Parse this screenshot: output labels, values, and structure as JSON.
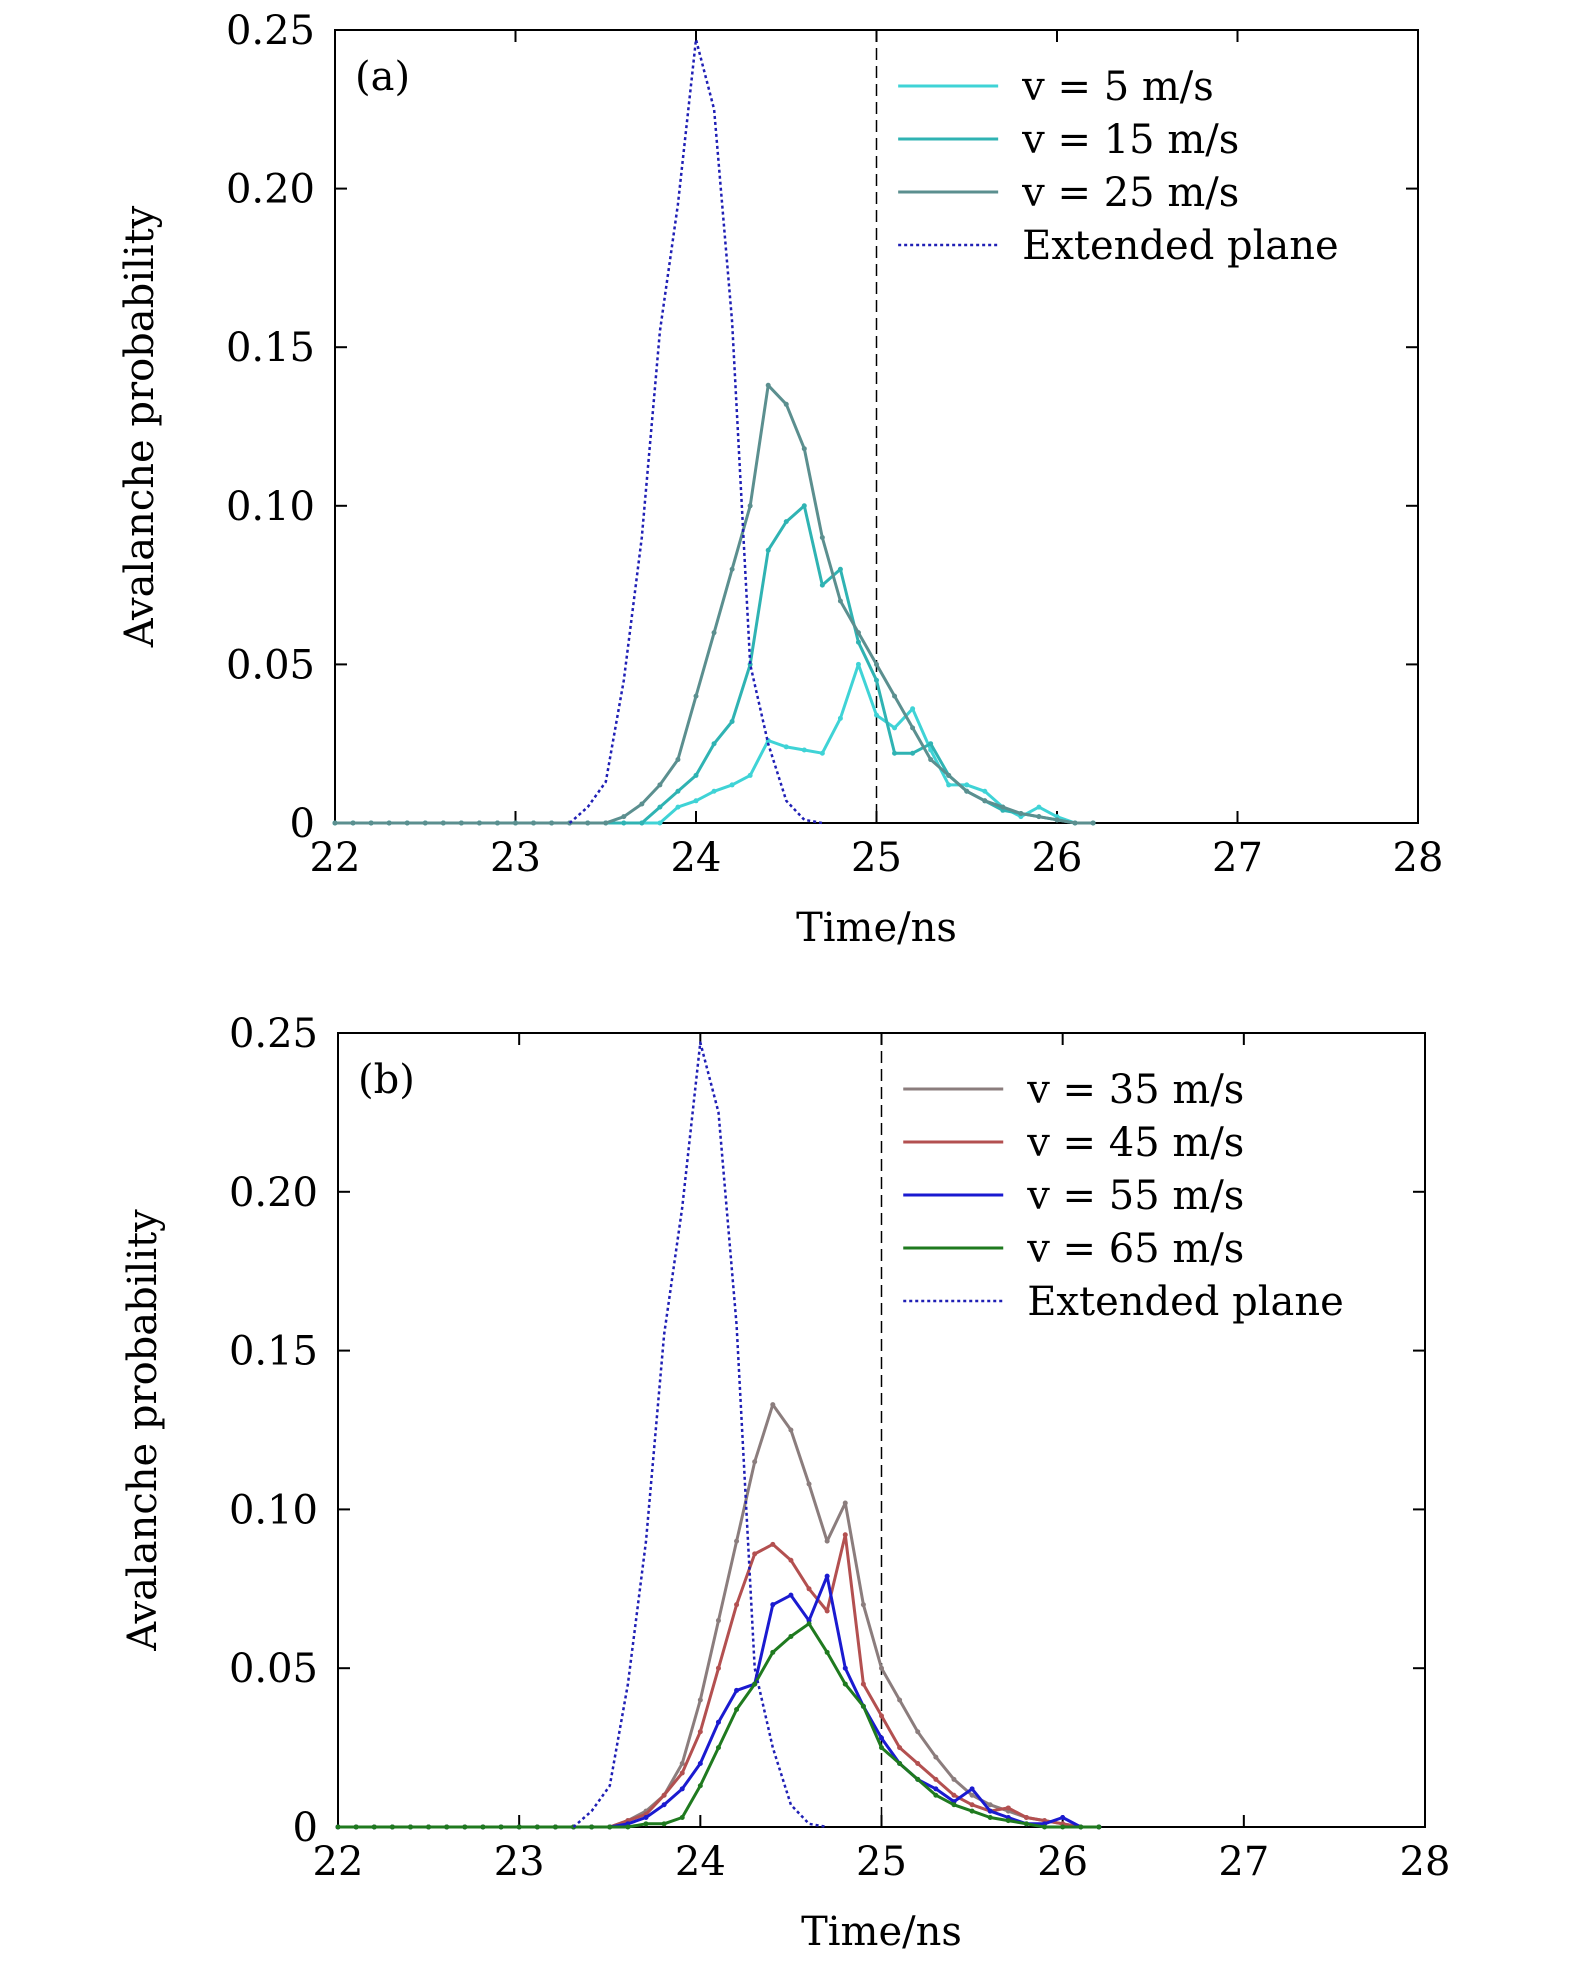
{
  "chart_data": [
    {
      "type": "line",
      "panel_label": "(a)",
      "xlabel": "Time/ns",
      "ylabel": "Avalanche probability",
      "xlim": [
        22,
        28
      ],
      "ylim": [
        0,
        0.25
      ],
      "xticks": [
        22,
        23,
        24,
        25,
        26,
        27,
        28
      ],
      "yticks": [
        0,
        0.05,
        0.1,
        0.15,
        0.2,
        0.25
      ],
      "xtick_labels": [
        "22",
        "23",
        "24",
        "25",
        "26",
        "27",
        "28"
      ],
      "ytick_labels": [
        "0",
        "0.05",
        "0.10",
        "0.15",
        "0.20",
        "0.25"
      ],
      "vline_x": 25,
      "legend_position": "top-right",
      "series": [
        {
          "name": "v = 5 m/s",
          "color": "#3fd3d6",
          "style": "solid",
          "x": [
            22,
            22.1,
            22.2,
            22.3,
            22.4,
            22.5,
            22.6,
            22.7,
            22.8,
            22.9,
            23,
            23.1,
            23.2,
            23.3,
            23.4,
            23.5,
            23.6,
            23.7,
            23.8,
            23.9,
            24,
            24.1,
            24.2,
            24.3,
            24.4,
            24.5,
            24.6,
            24.7,
            24.8,
            24.9,
            25,
            25.1,
            25.2,
            25.3,
            25.4,
            25.5,
            25.6,
            25.7,
            25.8,
            25.9,
            26,
            26.1,
            26.2
          ],
          "y": [
            0,
            0,
            0,
            0,
            0,
            0,
            0,
            0,
            0,
            0,
            0,
            0,
            0,
            0,
            0,
            0,
            0,
            0,
            0,
            0.005,
            0.007,
            0.01,
            0.012,
            0.015,
            0.026,
            0.024,
            0.023,
            0.022,
            0.033,
            0.05,
            0.034,
            0.03,
            0.036,
            0.023,
            0.012,
            0.012,
            0.01,
            0.005,
            0.002,
            0.005,
            0.002,
            0,
            0
          ]
        },
        {
          "name": "v = 15 m/s",
          "color": "#2fb3b3",
          "style": "solid",
          "x": [
            22,
            22.1,
            22.2,
            22.3,
            22.4,
            22.5,
            22.6,
            22.7,
            22.8,
            22.9,
            23,
            23.1,
            23.2,
            23.3,
            23.4,
            23.5,
            23.6,
            23.7,
            23.8,
            23.9,
            24,
            24.1,
            24.2,
            24.3,
            24.4,
            24.5,
            24.6,
            24.7,
            24.8,
            24.9,
            25,
            25.1,
            25.2,
            25.3,
            25.4,
            25.5,
            25.6,
            25.7,
            25.8,
            25.9,
            26,
            26.1,
            26.2
          ],
          "y": [
            0,
            0,
            0,
            0,
            0,
            0,
            0,
            0,
            0,
            0,
            0,
            0,
            0,
            0,
            0,
            0,
            0,
            0,
            0.005,
            0.01,
            0.015,
            0.025,
            0.032,
            0.05,
            0.086,
            0.095,
            0.1,
            0.075,
            0.08,
            0.057,
            0.045,
            0.022,
            0.022,
            0.025,
            0.015,
            0.01,
            0.007,
            0.004,
            0.003,
            0.002,
            0.001,
            0,
            0
          ]
        },
        {
          "name": "v = 25 m/s",
          "color": "#5b8f8f",
          "style": "solid",
          "x": [
            22,
            22.1,
            22.2,
            22.3,
            22.4,
            22.5,
            22.6,
            22.7,
            22.8,
            22.9,
            23,
            23.1,
            23.2,
            23.3,
            23.4,
            23.5,
            23.6,
            23.7,
            23.8,
            23.9,
            24,
            24.1,
            24.2,
            24.3,
            24.4,
            24.5,
            24.6,
            24.7,
            24.8,
            24.9,
            25,
            25.1,
            25.2,
            25.3,
            25.4,
            25.5,
            25.6,
            25.7,
            25.8,
            25.9,
            26,
            26.1,
            26.2
          ],
          "y": [
            0,
            0,
            0,
            0,
            0,
            0,
            0,
            0,
            0,
            0,
            0,
            0,
            0,
            0,
            0,
            0,
            0.002,
            0.006,
            0.012,
            0.02,
            0.04,
            0.06,
            0.08,
            0.1,
            0.138,
            0.132,
            0.118,
            0.09,
            0.07,
            0.06,
            0.05,
            0.04,
            0.03,
            0.02,
            0.015,
            0.01,
            0.007,
            0.005,
            0.003,
            0.002,
            0.001,
            0,
            0
          ]
        },
        {
          "name": "Extended plane",
          "color": "#1f1fb5",
          "style": "dotted",
          "x": [
            23.3,
            23.4,
            23.5,
            23.6,
            23.7,
            23.8,
            23.9,
            24,
            24.1,
            24.2,
            24.3,
            24.4,
            24.5,
            24.6,
            24.7
          ],
          "y": [
            0,
            0.005,
            0.013,
            0.045,
            0.09,
            0.155,
            0.195,
            0.247,
            0.225,
            0.158,
            0.05,
            0.025,
            0.007,
            0.001,
            0
          ]
        }
      ]
    },
    {
      "type": "line",
      "panel_label": "(b)",
      "xlabel": "Time/ns",
      "ylabel": "Avalanche probability",
      "xlim": [
        22,
        28
      ],
      "ylim": [
        0,
        0.25
      ],
      "xticks": [
        22,
        23,
        24,
        25,
        26,
        27,
        28
      ],
      "yticks": [
        0,
        0.05,
        0.1,
        0.15,
        0.2,
        0.25
      ],
      "xtick_labels": [
        "22",
        "23",
        "24",
        "25",
        "26",
        "27",
        "28"
      ],
      "ytick_labels": [
        "0",
        "0.05",
        "0.10",
        "0.15",
        "0.20",
        "0.25"
      ],
      "vline_x": 25,
      "legend_position": "top-right",
      "series": [
        {
          "name": "v = 35 m/s",
          "color": "#8b7d7d",
          "style": "solid",
          "x": [
            22,
            22.1,
            22.2,
            22.3,
            22.4,
            22.5,
            22.6,
            22.7,
            22.8,
            22.9,
            23,
            23.1,
            23.2,
            23.3,
            23.4,
            23.5,
            23.6,
            23.7,
            23.8,
            23.9,
            24,
            24.1,
            24.2,
            24.3,
            24.4,
            24.5,
            24.6,
            24.7,
            24.8,
            24.9,
            25,
            25.1,
            25.2,
            25.3,
            25.4,
            25.5,
            25.6,
            25.7,
            25.8,
            25.9,
            26,
            26.1,
            26.2
          ],
          "y": [
            0,
            0,
            0,
            0,
            0,
            0,
            0,
            0,
            0,
            0,
            0,
            0,
            0,
            0,
            0,
            0,
            0.002,
            0.005,
            0.01,
            0.02,
            0.04,
            0.065,
            0.09,
            0.115,
            0.133,
            0.125,
            0.108,
            0.09,
            0.102,
            0.07,
            0.05,
            0.04,
            0.03,
            0.022,
            0.015,
            0.01,
            0.007,
            0.005,
            0.003,
            0.002,
            0.001,
            0,
            0
          ]
        },
        {
          "name": "v = 45 m/s",
          "color": "#b35050",
          "style": "solid",
          "x": [
            22,
            22.1,
            22.2,
            22.3,
            22.4,
            22.5,
            22.6,
            22.7,
            22.8,
            22.9,
            23,
            23.1,
            23.2,
            23.3,
            23.4,
            23.5,
            23.6,
            23.7,
            23.8,
            23.9,
            24,
            24.1,
            24.2,
            24.3,
            24.4,
            24.5,
            24.6,
            24.7,
            24.8,
            24.9,
            25,
            25.1,
            25.2,
            25.3,
            25.4,
            25.5,
            25.6,
            25.7,
            25.8,
            25.9,
            26,
            26.1,
            26.2
          ],
          "y": [
            0,
            0,
            0,
            0,
            0,
            0,
            0,
            0,
            0,
            0,
            0,
            0,
            0,
            0,
            0,
            0,
            0.002,
            0.004,
            0.01,
            0.017,
            0.03,
            0.05,
            0.07,
            0.086,
            0.089,
            0.084,
            0.075,
            0.068,
            0.092,
            0.045,
            0.035,
            0.025,
            0.02,
            0.015,
            0.01,
            0.007,
            0.005,
            0.006,
            0.003,
            0.002,
            0.001,
            0,
            0
          ]
        },
        {
          "name": "v = 55 m/s",
          "color": "#1a1ad0",
          "style": "solid",
          "x": [
            22,
            22.1,
            22.2,
            22.3,
            22.4,
            22.5,
            22.6,
            22.7,
            22.8,
            22.9,
            23,
            23.1,
            23.2,
            23.3,
            23.4,
            23.5,
            23.6,
            23.7,
            23.8,
            23.9,
            24,
            24.1,
            24.2,
            24.3,
            24.4,
            24.5,
            24.6,
            24.7,
            24.8,
            24.9,
            25,
            25.1,
            25.2,
            25.3,
            25.4,
            25.5,
            25.6,
            25.7,
            25.8,
            25.9,
            26,
            26.1,
            26.2
          ],
          "y": [
            0,
            0,
            0,
            0,
            0,
            0,
            0,
            0,
            0,
            0,
            0,
            0,
            0,
            0,
            0,
            0,
            0.001,
            0.003,
            0.007,
            0.012,
            0.02,
            0.033,
            0.043,
            0.045,
            0.07,
            0.073,
            0.065,
            0.079,
            0.05,
            0.038,
            0.028,
            0.02,
            0.015,
            0.012,
            0.008,
            0.012,
            0.005,
            0.003,
            0.001,
            0.001,
            0.003,
            0,
            0
          ]
        },
        {
          "name": "v = 65 m/s",
          "color": "#1f7a1f",
          "style": "solid",
          "x": [
            22,
            22.1,
            22.2,
            22.3,
            22.4,
            22.5,
            22.6,
            22.7,
            22.8,
            22.9,
            23,
            23.1,
            23.2,
            23.3,
            23.4,
            23.5,
            23.6,
            23.7,
            23.8,
            23.9,
            24,
            24.1,
            24.2,
            24.3,
            24.4,
            24.5,
            24.6,
            24.7,
            24.8,
            24.9,
            25,
            25.1,
            25.2,
            25.3,
            25.4,
            25.5,
            25.6,
            25.7,
            25.8,
            25.9,
            26,
            26.1,
            26.2
          ],
          "y": [
            0,
            0,
            0,
            0,
            0,
            0,
            0,
            0,
            0,
            0,
            0,
            0,
            0,
            0,
            0,
            0,
            0,
            0.001,
            0.001,
            0.003,
            0.013,
            0.025,
            0.037,
            0.045,
            0.055,
            0.06,
            0.064,
            0.055,
            0.045,
            0.038,
            0.025,
            0.02,
            0.015,
            0.01,
            0.007,
            0.005,
            0.003,
            0.002,
            0.001,
            0,
            0,
            0,
            0
          ]
        },
        {
          "name": "Extended plane",
          "color": "#1f1fb5",
          "style": "dotted",
          "x": [
            23.3,
            23.4,
            23.5,
            23.6,
            23.7,
            23.8,
            23.9,
            24,
            24.1,
            24.2,
            24.3,
            24.4,
            24.5,
            24.6,
            24.7
          ],
          "y": [
            0,
            0.005,
            0.013,
            0.045,
            0.09,
            0.155,
            0.195,
            0.247,
            0.225,
            0.158,
            0.05,
            0.025,
            0.007,
            0.001,
            0
          ]
        }
      ]
    }
  ]
}
